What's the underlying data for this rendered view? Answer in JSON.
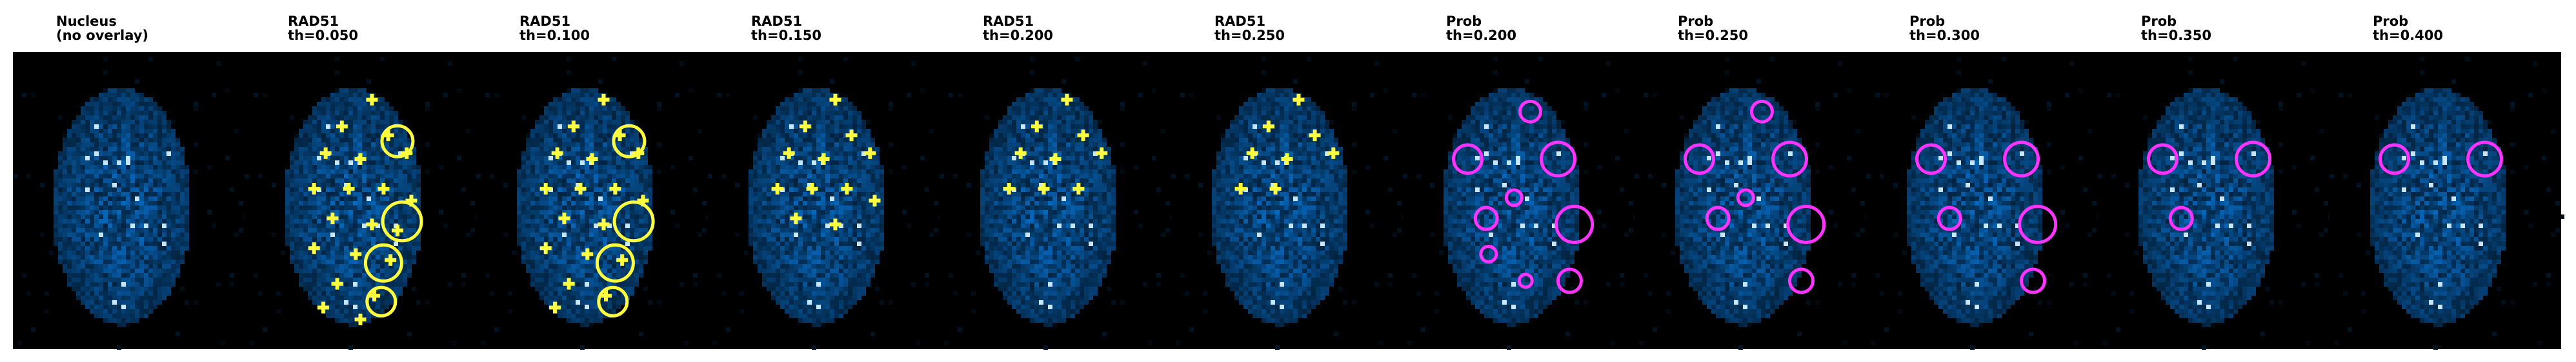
{
  "panels": [
    {
      "title": [
        "Nucleus",
        "(no overlay)"
      ]
    },
    {
      "title": [
        "RAD51",
        "th=0.050"
      ]
    },
    {
      "title": [
        "RAD51",
        "th=0.100"
      ]
    },
    {
      "title": [
        "RAD51",
        "th=0.150"
      ]
    },
    {
      "title": [
        "RAD51",
        "th=0.200"
      ]
    },
    {
      "title": [
        "RAD51",
        "th=0.250"
      ]
    },
    {
      "title": [
        "Prob",
        "th=0.200"
      ]
    },
    {
      "title": [
        "Prob",
        "th=0.250"
      ]
    },
    {
      "title": [
        "Prob",
        "th=0.300"
      ]
    },
    {
      "title": [
        "Prob",
        "th=0.350"
      ]
    },
    {
      "title": [
        "Prob",
        "th=0.400"
      ]
    }
  ]
}
